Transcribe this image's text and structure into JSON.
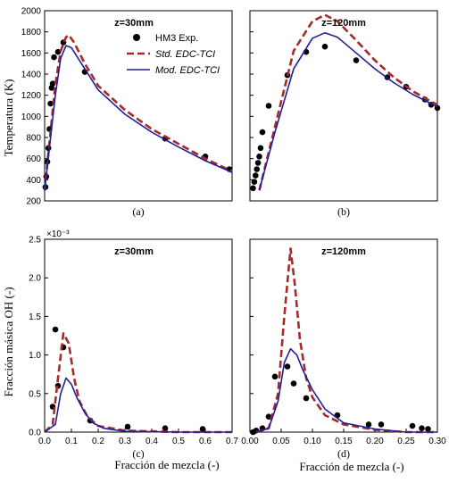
{
  "y_label_top": "Temperatura  (K)",
  "y_label_bottom": "Fracción  másica  OH (-)",
  "x_label_c": "Fracción  de mezcla  (-)",
  "x_label_d": "Fracción  de mezcla  (-)",
  "colors": {
    "exp": "#000000",
    "std": "#a52a2a",
    "mod": "#1f1f9a"
  },
  "chart_data": [
    {
      "type": "line",
      "panel": "(a)",
      "title": "z=30mm",
      "ylim": [
        200,
        2000
      ],
      "xlim": [
        0,
        0.7
      ],
      "yticks": [
        200,
        400,
        600,
        800,
        1000,
        1200,
        1400,
        1600,
        1800,
        2000
      ],
      "legend": {
        "placement": "top-right",
        "entries": [
          "HM3 Exp.",
          "Std. EDC-TCI",
          "Mod. EDC-TCI"
        ]
      },
      "series": [
        {
          "name": "HM3 Exp.",
          "kind": "scatter",
          "points": [
            [
              0.003,
              330
            ],
            [
              0.006,
              430
            ],
            [
              0.01,
              570
            ],
            [
              0.014,
              700
            ],
            [
              0.018,
              880
            ],
            [
              0.022,
              1120
            ],
            [
              0.026,
              1270
            ],
            [
              0.03,
              1310
            ],
            [
              0.035,
              1560
            ],
            [
              0.05,
              1610
            ],
            [
              0.07,
              1700
            ],
            [
              0.15,
              1420
            ],
            [
              0.45,
              790
            ],
            [
              0.6,
              620
            ],
            [
              0.69,
              500
            ]
          ]
        },
        {
          "name": "Std. EDC-TCI",
          "kind": "line",
          "points": [
            [
              0.0,
              300
            ],
            [
              0.02,
              800
            ],
            [
              0.04,
              1300
            ],
            [
              0.06,
              1620
            ],
            [
              0.08,
              1750
            ],
            [
              0.09,
              1770
            ],
            [
              0.11,
              1700
            ],
            [
              0.15,
              1500
            ],
            [
              0.2,
              1290
            ],
            [
              0.3,
              1060
            ],
            [
              0.4,
              880
            ],
            [
              0.5,
              740
            ],
            [
              0.6,
              600
            ],
            [
              0.7,
              480
            ]
          ]
        },
        {
          "name": "Mod. EDC-TCI",
          "kind": "line",
          "points": [
            [
              0.0,
              300
            ],
            [
              0.02,
              750
            ],
            [
              0.04,
              1200
            ],
            [
              0.06,
              1550
            ],
            [
              0.08,
              1670
            ],
            [
              0.1,
              1650
            ],
            [
              0.15,
              1450
            ],
            [
              0.2,
              1250
            ],
            [
              0.3,
              1020
            ],
            [
              0.4,
              850
            ],
            [
              0.5,
              710
            ],
            [
              0.6,
              580
            ],
            [
              0.7,
              470
            ]
          ]
        }
      ]
    },
    {
      "type": "line",
      "panel": "(b)",
      "title": "z=120mm",
      "ylim": [
        200,
        2000
      ],
      "xlim": [
        0,
        0.3
      ],
      "series": [
        {
          "name": "HM3 Exp.",
          "kind": "scatter",
          "points": [
            [
              0.005,
              320
            ],
            [
              0.007,
              380
            ],
            [
              0.009,
              440
            ],
            [
              0.011,
              500
            ],
            [
              0.013,
              560
            ],
            [
              0.015,
              620
            ],
            [
              0.017,
              700
            ],
            [
              0.02,
              850
            ],
            [
              0.03,
              1100
            ],
            [
              0.06,
              1390
            ],
            [
              0.09,
              1610
            ],
            [
              0.12,
              1660
            ],
            [
              0.17,
              1530
            ],
            [
              0.22,
              1370
            ],
            [
              0.25,
              1280
            ],
            [
              0.28,
              1160
            ],
            [
              0.29,
              1110
            ],
            [
              0.3,
              1080
            ]
          ]
        },
        {
          "name": "Std. EDC-TCI",
          "kind": "line",
          "points": [
            [
              0.015,
              300
            ],
            [
              0.04,
              900
            ],
            [
              0.07,
              1620
            ],
            [
              0.1,
              1900
            ],
            [
              0.12,
              1960
            ],
            [
              0.14,
              1900
            ],
            [
              0.17,
              1720
            ],
            [
              0.2,
              1530
            ],
            [
              0.23,
              1370
            ],
            [
              0.26,
              1240
            ],
            [
              0.29,
              1140
            ],
            [
              0.3,
              1110
            ]
          ]
        },
        {
          "name": "Mod. EDC-TCI",
          "kind": "line",
          "points": [
            [
              0.015,
              300
            ],
            [
              0.04,
              850
            ],
            [
              0.07,
              1450
            ],
            [
              0.1,
              1740
            ],
            [
              0.12,
              1790
            ],
            [
              0.14,
              1750
            ],
            [
              0.17,
              1600
            ],
            [
              0.2,
              1450
            ],
            [
              0.23,
              1320
            ],
            [
              0.26,
              1210
            ],
            [
              0.29,
              1120
            ],
            [
              0.3,
              1090
            ]
          ]
        }
      ]
    },
    {
      "type": "line",
      "panel": "(c)",
      "title": "z=30mm",
      "ylim": [
        0,
        2.5
      ],
      "yscale_label": "×10⁻³",
      "xlim": [
        0,
        0.7
      ],
      "xticks": [
        0.0,
        0.1,
        0.2,
        0.3,
        0.4,
        0.5,
        0.6,
        0.7
      ],
      "yticks": [
        0.0,
        0.5,
        1.0,
        1.5,
        2.0,
        2.5
      ],
      "series": [
        {
          "name": "HM3 Exp.",
          "kind": "scatter",
          "points": [
            [
              0.03,
              0.33
            ],
            [
              0.04,
              1.33
            ],
            [
              0.05,
              0.6
            ],
            [
              0.07,
              1.1
            ],
            [
              0.17,
              0.15
            ],
            [
              0.31,
              0.07
            ],
            [
              0.45,
              0.05
            ],
            [
              0.59,
              0.04
            ]
          ]
        },
        {
          "name": "Std. EDC-TCI",
          "kind": "line",
          "points": [
            [
              0.0,
              0.0
            ],
            [
              0.03,
              0.1
            ],
            [
              0.05,
              0.7
            ],
            [
              0.07,
              1.28
            ],
            [
              0.09,
              1.15
            ],
            [
              0.11,
              0.7
            ],
            [
              0.13,
              0.4
            ],
            [
              0.16,
              0.2
            ],
            [
              0.2,
              0.08
            ],
            [
              0.3,
              0.02
            ],
            [
              0.5,
              0.0
            ],
            [
              0.7,
              0.0
            ]
          ]
        },
        {
          "name": "Mod. EDC-TCI",
          "kind": "line",
          "points": [
            [
              0.0,
              0.0
            ],
            [
              0.04,
              0.1
            ],
            [
              0.06,
              0.5
            ],
            [
              0.08,
              0.7
            ],
            [
              0.1,
              0.62
            ],
            [
              0.12,
              0.45
            ],
            [
              0.15,
              0.25
            ],
            [
              0.18,
              0.12
            ],
            [
              0.22,
              0.05
            ],
            [
              0.3,
              0.01
            ],
            [
              0.5,
              0.0
            ],
            [
              0.7,
              0.0
            ]
          ]
        }
      ]
    },
    {
      "type": "line",
      "panel": "(d)",
      "title": "z=120mm",
      "ylim": [
        0,
        2.5
      ],
      "xlim": [
        0,
        0.3
      ],
      "xticks": [
        0.0,
        0.05,
        0.1,
        0.15,
        0.2,
        0.25,
        0.3
      ],
      "series": [
        {
          "name": "HM3 Exp.",
          "kind": "scatter",
          "points": [
            [
              0.005,
              0.0
            ],
            [
              0.01,
              0.02
            ],
            [
              0.02,
              0.05
            ],
            [
              0.03,
              0.2
            ],
            [
              0.04,
              0.72
            ],
            [
              0.06,
              0.85
            ],
            [
              0.07,
              0.63
            ],
            [
              0.09,
              0.44
            ],
            [
              0.14,
              0.22
            ],
            [
              0.19,
              0.1
            ],
            [
              0.21,
              0.1
            ],
            [
              0.26,
              0.08
            ],
            [
              0.275,
              0.05
            ],
            [
              0.285,
              0.04
            ]
          ]
        },
        {
          "name": "Std. EDC-TCI",
          "kind": "line",
          "points": [
            [
              0.01,
              0.0
            ],
            [
              0.03,
              0.05
            ],
            [
              0.045,
              0.5
            ],
            [
              0.055,
              1.5
            ],
            [
              0.065,
              2.38
            ],
            [
              0.072,
              1.9
            ],
            [
              0.08,
              1.2
            ],
            [
              0.09,
              0.7
            ],
            [
              0.1,
              0.45
            ],
            [
              0.12,
              0.22
            ],
            [
              0.15,
              0.1
            ],
            [
              0.2,
              0.03
            ],
            [
              0.25,
              0.0
            ],
            [
              0.3,
              0.0
            ]
          ]
        },
        {
          "name": "Mod. EDC-TCI",
          "kind": "line",
          "points": [
            [
              0.01,
              0.0
            ],
            [
              0.03,
              0.05
            ],
            [
              0.045,
              0.4
            ],
            [
              0.055,
              0.9
            ],
            [
              0.065,
              1.08
            ],
            [
              0.075,
              1.0
            ],
            [
              0.085,
              0.8
            ],
            [
              0.1,
              0.55
            ],
            [
              0.12,
              0.3
            ],
            [
              0.15,
              0.12
            ],
            [
              0.2,
              0.04
            ],
            [
              0.25,
              0.0
            ],
            [
              0.3,
              0.0
            ]
          ]
        }
      ]
    }
  ]
}
